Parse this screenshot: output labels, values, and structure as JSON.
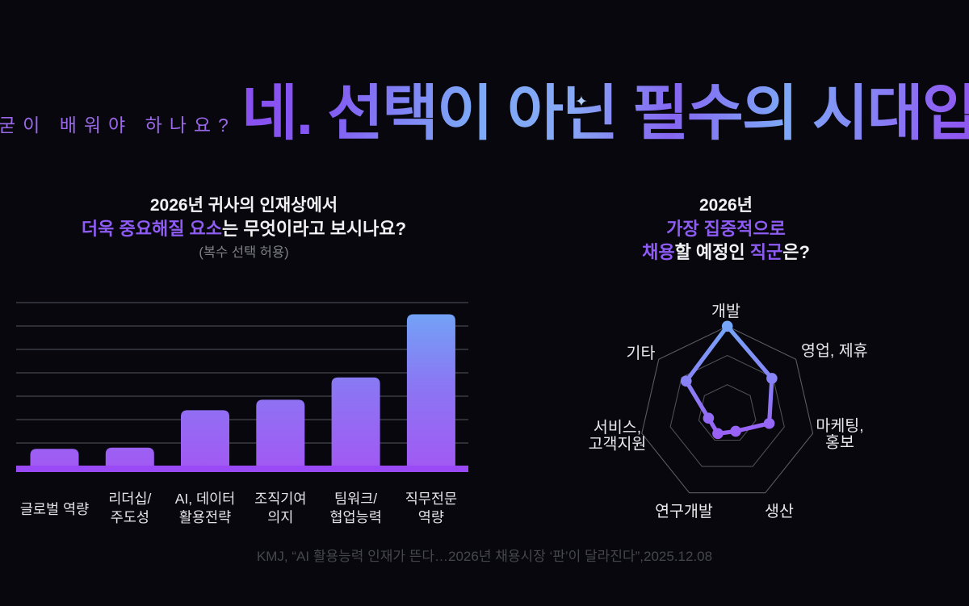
{
  "header": {
    "kicker": "굳이 배워야 하나요?",
    "headline": "네. 선택이 아닌 필수의 시대입니다!",
    "sparkle_icon": "✦"
  },
  "bar_section": {
    "title_line1": "2026년 귀사의 인재상에서",
    "title_line2_accent": "더욱 중요해질 요소",
    "title_line2_rest": "는 무엇이라고 보시나요?",
    "subtitle": "(복수 선택 허용)"
  },
  "radar_section": {
    "title_line1": "2026년",
    "title_line2": "가장 집중적으로",
    "title_line3_accent1": "채용",
    "title_line3_mid": "할 예정인 ",
    "title_line3_accent2": "직군",
    "title_line3_end": "은?"
  },
  "footer": {
    "citation": "KMJ, “AI 활용능력 인재가 뜬다…2026년 채용시장 ‘판’이 달라진다”,2025.12.08"
  },
  "colors": {
    "background": "#07070d",
    "accent_purple": "#8e5bf4",
    "kicker_purple": "#9a68e8",
    "headline_gradient": [
      "#8a4ff0",
      "#7da9f7",
      "#9150ee"
    ],
    "bar_gradient_top": "#6fa9f7",
    "bar_gradient_bottom": "#a15af3",
    "baseline_purple": "#9949f5",
    "gridline_gray": "#55555e",
    "label_white": "#e4e4e8",
    "subtitle_gray": "#7f7f87",
    "footer_gray": "#46464e"
  },
  "chart_data": [
    {
      "type": "bar",
      "title": "2026년 귀사의 인재상에서 더욱 중요해질 요소는 무엇이라고 보시나요? (복수 선택 허용)",
      "categories": [
        [
          "글로벌 역량"
        ],
        [
          "리더십/",
          "주도성"
        ],
        [
          "AI, 데이터",
          "활용전략"
        ],
        [
          "조직기여",
          "의지"
        ],
        [
          "팀워크/",
          "협업능력"
        ],
        [
          "직무전문",
          "역량"
        ]
      ],
      "values": [
        7.5,
        8,
        24,
        28.5,
        38,
        65
      ],
      "xlabel": "",
      "ylabel": "",
      "ylim": [
        0,
        70
      ],
      "gridline_step": 10,
      "grid": true,
      "legend": false,
      "bar_gradient": [
        "#6fa9f7",
        "#8a77f3",
        "#a15af3"
      ],
      "baseline_color": "#9949f5"
    },
    {
      "type": "radar",
      "title": "2026년 가장 집중적으로 채용할 예정인 직군은?",
      "categories": [
        [
          "개발"
        ],
        [
          "영업, 제휴"
        ],
        [
          "마케팅,",
          "홍보"
        ],
        [
          "생산"
        ],
        [
          "연구개발"
        ],
        [
          "서비스,",
          "고객지원"
        ],
        [
          "기타"
        ]
      ],
      "values": [
        100,
        65,
        49,
        22,
        25,
        22,
        60
      ],
      "max": 100,
      "rings": 3,
      "grid": true,
      "legend": false,
      "line_gradient": [
        "#74aaf8",
        "#9c5bf5"
      ]
    }
  ]
}
